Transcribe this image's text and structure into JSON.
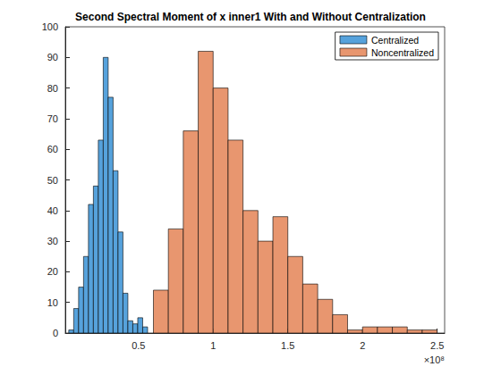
{
  "chart_data": {
    "type": "histogram",
    "title": "Second Spectral Moment of x inner1 With and Without Centralization",
    "annotations": [
      "×10⁸"
    ],
    "series": [
      {
        "name": "Centralized",
        "color": "#56A2DC",
        "bins": [
          0.033,
          0.066,
          0.099,
          0.132,
          0.165,
          0.198,
          0.231,
          0.264,
          0.297,
          0.33,
          0.363,
          0.396,
          0.429,
          0.462,
          0.495,
          0.528,
          0.561
        ],
        "values": [
          1,
          8,
          15,
          25,
          42,
          48,
          63,
          90,
          77,
          53,
          33,
          13,
          4,
          3,
          5,
          2
        ]
      },
      {
        "name": "Noncentralized",
        "color": "#E8966F",
        "bins": [
          0.6,
          0.7,
          0.8,
          0.9,
          1.0,
          1.1,
          1.2,
          1.3,
          1.4,
          1.5,
          1.6,
          1.7,
          1.8,
          1.9,
          2.0,
          2.1,
          2.2,
          2.3,
          2.4,
          2.5
        ],
        "values": [
          14,
          34,
          66,
          92,
          80,
          63,
          40,
          30,
          38,
          25,
          16,
          11,
          6,
          1,
          2,
          2,
          2,
          1,
          1
        ]
      }
    ],
    "xlim": [
      0.01,
      2.55
    ],
    "xticks": [
      0.5,
      1,
      1.5,
      2,
      2.5
    ],
    "ylim": [
      0,
      100
    ],
    "yticks": [
      0,
      10,
      20,
      30,
      40,
      50,
      60,
      70,
      80,
      90,
      100
    ],
    "grid": false,
    "legend": "top-right"
  }
}
